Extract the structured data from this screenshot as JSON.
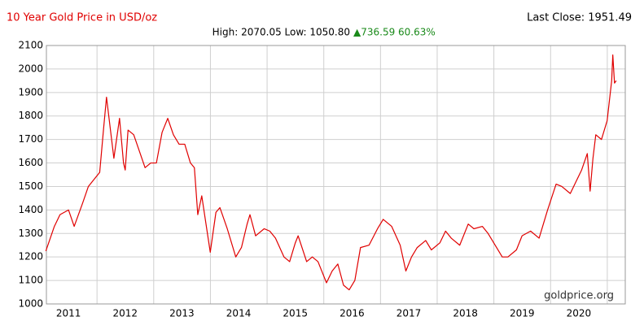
{
  "chart_data": {
    "type": "line",
    "title": "10 Year Gold Price in USD/oz",
    "last_close": "Last Close: 1951.49",
    "high_low": "High: 2070.05 Low: 1050.80",
    "change": "▲736.59 60.63%",
    "source": "goldprice.org",
    "color": "#e00000",
    "x": [
      2010.6,
      2010.75,
      2010.85,
      2011.0,
      2011.1,
      2011.25,
      2011.35,
      2011.45,
      2011.55,
      2011.62,
      2011.67,
      2011.72,
      2011.8,
      2011.9,
      2011.97,
      2012.0,
      2012.05,
      2012.15,
      2012.25,
      2012.35,
      2012.45,
      2012.55,
      2012.65,
      2012.75,
      2012.85,
      2012.95,
      2013.05,
      2013.15,
      2013.22,
      2013.28,
      2013.35,
      2013.45,
      2013.5,
      2013.6,
      2013.67,
      2013.8,
      2013.95,
      2014.05,
      2014.15,
      2014.2,
      2014.3,
      2014.45,
      2014.55,
      2014.65,
      2014.8,
      2014.9,
      2015.0,
      2015.05,
      2015.2,
      2015.3,
      2015.4,
      2015.55,
      2015.65,
      2015.75,
      2015.85,
      2015.95,
      2016.05,
      2016.15,
      2016.3,
      2016.45,
      2016.55,
      2016.7,
      2016.85,
      2016.95,
      2017.05,
      2017.15,
      2017.3,
      2017.4,
      2017.55,
      2017.65,
      2017.75,
      2017.9,
      2018.05,
      2018.15,
      2018.3,
      2018.4,
      2018.55,
      2018.65,
      2018.75,
      2018.9,
      2019.0,
      2019.15,
      2019.3,
      2019.45,
      2019.6,
      2019.7,
      2019.85,
      2019.95,
      2020.05,
      2020.15,
      2020.2,
      2020.25,
      2020.3,
      2020.4,
      2020.5,
      2020.58,
      2020.6,
      2020.63,
      2020.66
    ],
    "values": [
      1225,
      1330,
      1380,
      1400,
      1330,
      1430,
      1500,
      1530,
      1560,
      1750,
      1880,
      1780,
      1620,
      1790,
      1600,
      1570,
      1740,
      1720,
      1650,
      1580,
      1600,
      1600,
      1730,
      1790,
      1720,
      1680,
      1680,
      1600,
      1580,
      1380,
      1460,
      1300,
      1220,
      1390,
      1410,
      1320,
      1200,
      1240,
      1340,
      1380,
      1290,
      1320,
      1310,
      1280,
      1200,
      1180,
      1260,
      1290,
      1180,
      1200,
      1180,
      1090,
      1140,
      1170,
      1080,
      1060,
      1100,
      1240,
      1250,
      1320,
      1360,
      1330,
      1250,
      1140,
      1200,
      1240,
      1270,
      1230,
      1260,
      1310,
      1280,
      1250,
      1340,
      1320,
      1330,
      1300,
      1240,
      1200,
      1200,
      1230,
      1290,
      1310,
      1280,
      1400,
      1510,
      1500,
      1470,
      1520,
      1570,
      1640,
      1480,
      1620,
      1720,
      1700,
      1780,
      1950,
      2060,
      1940,
      1950
    ],
    "xlim": [
      2010.61,
      2020.82
    ],
    "xticks": [
      2011,
      2012,
      2013,
      2014,
      2015,
      2016,
      2017,
      2018,
      2019,
      2020
    ],
    "ylim": [
      1000,
      2100
    ],
    "yticks": [
      1000,
      1100,
      1200,
      1300,
      1400,
      1500,
      1600,
      1700,
      1800,
      1900,
      2000,
      2100
    ],
    "grid": true
  }
}
